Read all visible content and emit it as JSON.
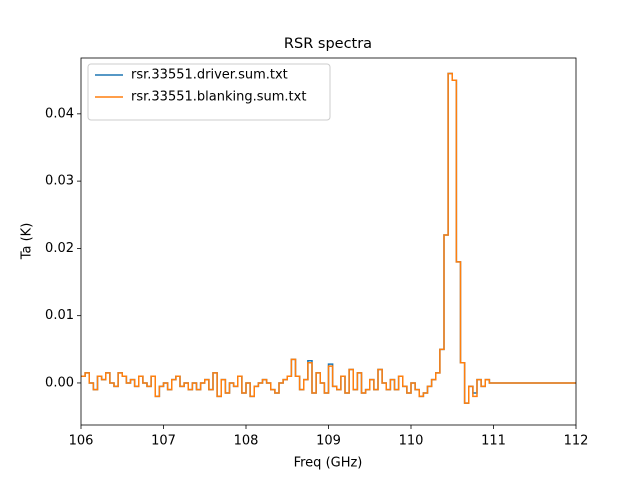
{
  "chart_data": {
    "type": "step",
    "title": "RSR spectra",
    "xlabel": "Freq  (GHz)",
    "ylabel": "Ta (K)",
    "x": [
      106.0,
      106.05,
      106.1,
      106.15,
      106.2,
      106.25,
      106.3,
      106.35,
      106.4,
      106.45,
      106.5,
      106.55,
      106.6,
      106.65,
      106.7,
      106.75,
      106.8,
      106.85,
      106.9,
      106.95,
      107.0,
      107.05,
      107.1,
      107.15,
      107.2,
      107.25,
      107.3,
      107.35,
      107.4,
      107.45,
      107.5,
      107.55,
      107.6,
      107.65,
      107.7,
      107.75,
      107.8,
      107.85,
      107.9,
      107.95,
      108.0,
      108.05,
      108.1,
      108.15,
      108.2,
      108.25,
      108.3,
      108.35,
      108.4,
      108.45,
      108.5,
      108.55,
      108.6,
      108.65,
      108.7,
      108.75,
      108.8,
      108.85,
      108.9,
      108.95,
      109.0,
      109.05,
      109.1,
      109.15,
      109.2,
      109.25,
      109.3,
      109.35,
      109.4,
      109.45,
      109.5,
      109.55,
      109.6,
      109.65,
      109.7,
      109.75,
      109.8,
      109.85,
      109.9,
      109.95,
      110.0,
      110.05,
      110.1,
      110.15,
      110.2,
      110.25,
      110.3,
      110.35,
      110.4,
      110.45,
      110.5,
      110.55,
      110.6,
      110.65,
      110.7,
      110.75,
      110.8,
      110.85,
      110.9,
      110.95,
      111.0,
      112.0
    ],
    "series": [
      {
        "name": "rsr.33551.driver.sum.txt",
        "color": "#1f77b4",
        "values": [
          0.001,
          0.0015,
          0.0,
          -0.001,
          0.001,
          0.0005,
          0.0015,
          0.0,
          -0.0005,
          0.0015,
          0.001,
          0.0,
          0.0005,
          -0.0005,
          0.001,
          0.0,
          -0.0005,
          0.001,
          -0.002,
          -0.0005,
          0.0,
          -0.001,
          0.0005,
          0.001,
          -0.0005,
          0.0,
          -0.001,
          0.0,
          -0.001,
          0.0,
          0.0005,
          -0.001,
          0.0015,
          -0.002,
          0.0005,
          -0.0015,
          0.0,
          -0.0005,
          0.001,
          -0.0015,
          0.0,
          -0.002,
          -0.0005,
          0.0,
          0.0005,
          0.0,
          -0.001,
          -0.0015,
          0.0,
          0.0005,
          0.001,
          0.0035,
          0.001,
          -0.001,
          0.0005,
          0.0033,
          -0.0015,
          0.0015,
          0.0,
          -0.0015,
          0.0028,
          -0.0005,
          -0.001,
          0.001,
          -0.0015,
          0.002,
          -0.001,
          0.0015,
          -0.0015,
          -0.001,
          0.0005,
          -0.001,
          0.002,
          0.0,
          -0.001,
          0.0005,
          -0.001,
          0.001,
          -0.0005,
          -0.0015,
          0.0,
          -0.001,
          -0.002,
          -0.0015,
          -0.0005,
          0.0005,
          0.0015,
          0.005,
          0.022,
          0.046,
          0.045,
          0.018,
          0.003,
          -0.003,
          -0.0005,
          -0.0015,
          0.0005,
          -0.0005,
          0.0005,
          0.0,
          0.0,
          0.0
        ]
      },
      {
        "name": "rsr.33551.blanking.sum.txt",
        "color": "#ff7f0e",
        "values": [
          0.001,
          0.0015,
          0.0,
          -0.001,
          0.001,
          0.0005,
          0.0015,
          0.0,
          -0.0005,
          0.0015,
          0.001,
          0.0,
          0.0005,
          -0.0005,
          0.001,
          0.0,
          -0.0005,
          0.001,
          -0.002,
          -0.0005,
          0.0,
          -0.001,
          0.0005,
          0.001,
          -0.0005,
          0.0,
          -0.001,
          0.0,
          -0.001,
          0.0,
          0.0005,
          -0.001,
          0.0015,
          -0.002,
          0.0005,
          -0.0015,
          0.0,
          -0.0005,
          0.001,
          -0.0015,
          0.0,
          -0.002,
          -0.0005,
          0.0,
          0.0005,
          0.0,
          -0.001,
          -0.0015,
          0.0,
          0.0005,
          0.001,
          0.0035,
          0.001,
          -0.001,
          0.0005,
          0.003,
          -0.0015,
          0.0015,
          0.0,
          -0.0015,
          0.0025,
          -0.0005,
          -0.001,
          0.001,
          -0.0015,
          0.002,
          -0.001,
          0.0015,
          -0.0015,
          -0.001,
          0.0005,
          -0.001,
          0.002,
          0.0,
          -0.001,
          0.0005,
          -0.001,
          0.001,
          -0.0005,
          -0.0015,
          0.0,
          -0.001,
          -0.002,
          -0.0015,
          -0.0005,
          0.0005,
          0.0015,
          0.005,
          0.022,
          0.046,
          0.045,
          0.018,
          0.003,
          -0.003,
          -0.0005,
          -0.002,
          0.0005,
          -0.0005,
          0.0005,
          0.0,
          0.0,
          0.0
        ]
      }
    ],
    "xlim": [
      106,
      112
    ],
    "ylim": [
      -0.00625,
      0.0483
    ],
    "xticks": [
      106,
      107,
      108,
      109,
      110,
      111,
      112
    ],
    "yticks": [
      {
        "value": 0,
        "label": "0.00"
      },
      {
        "value": 0.01,
        "label": "0.01"
      },
      {
        "value": 0.02,
        "label": "0.02"
      },
      {
        "value": 0.03,
        "label": "0.03"
      },
      {
        "value": 0.04,
        "label": "0.04"
      }
    ],
    "legend": "upper left",
    "grid": false
  }
}
